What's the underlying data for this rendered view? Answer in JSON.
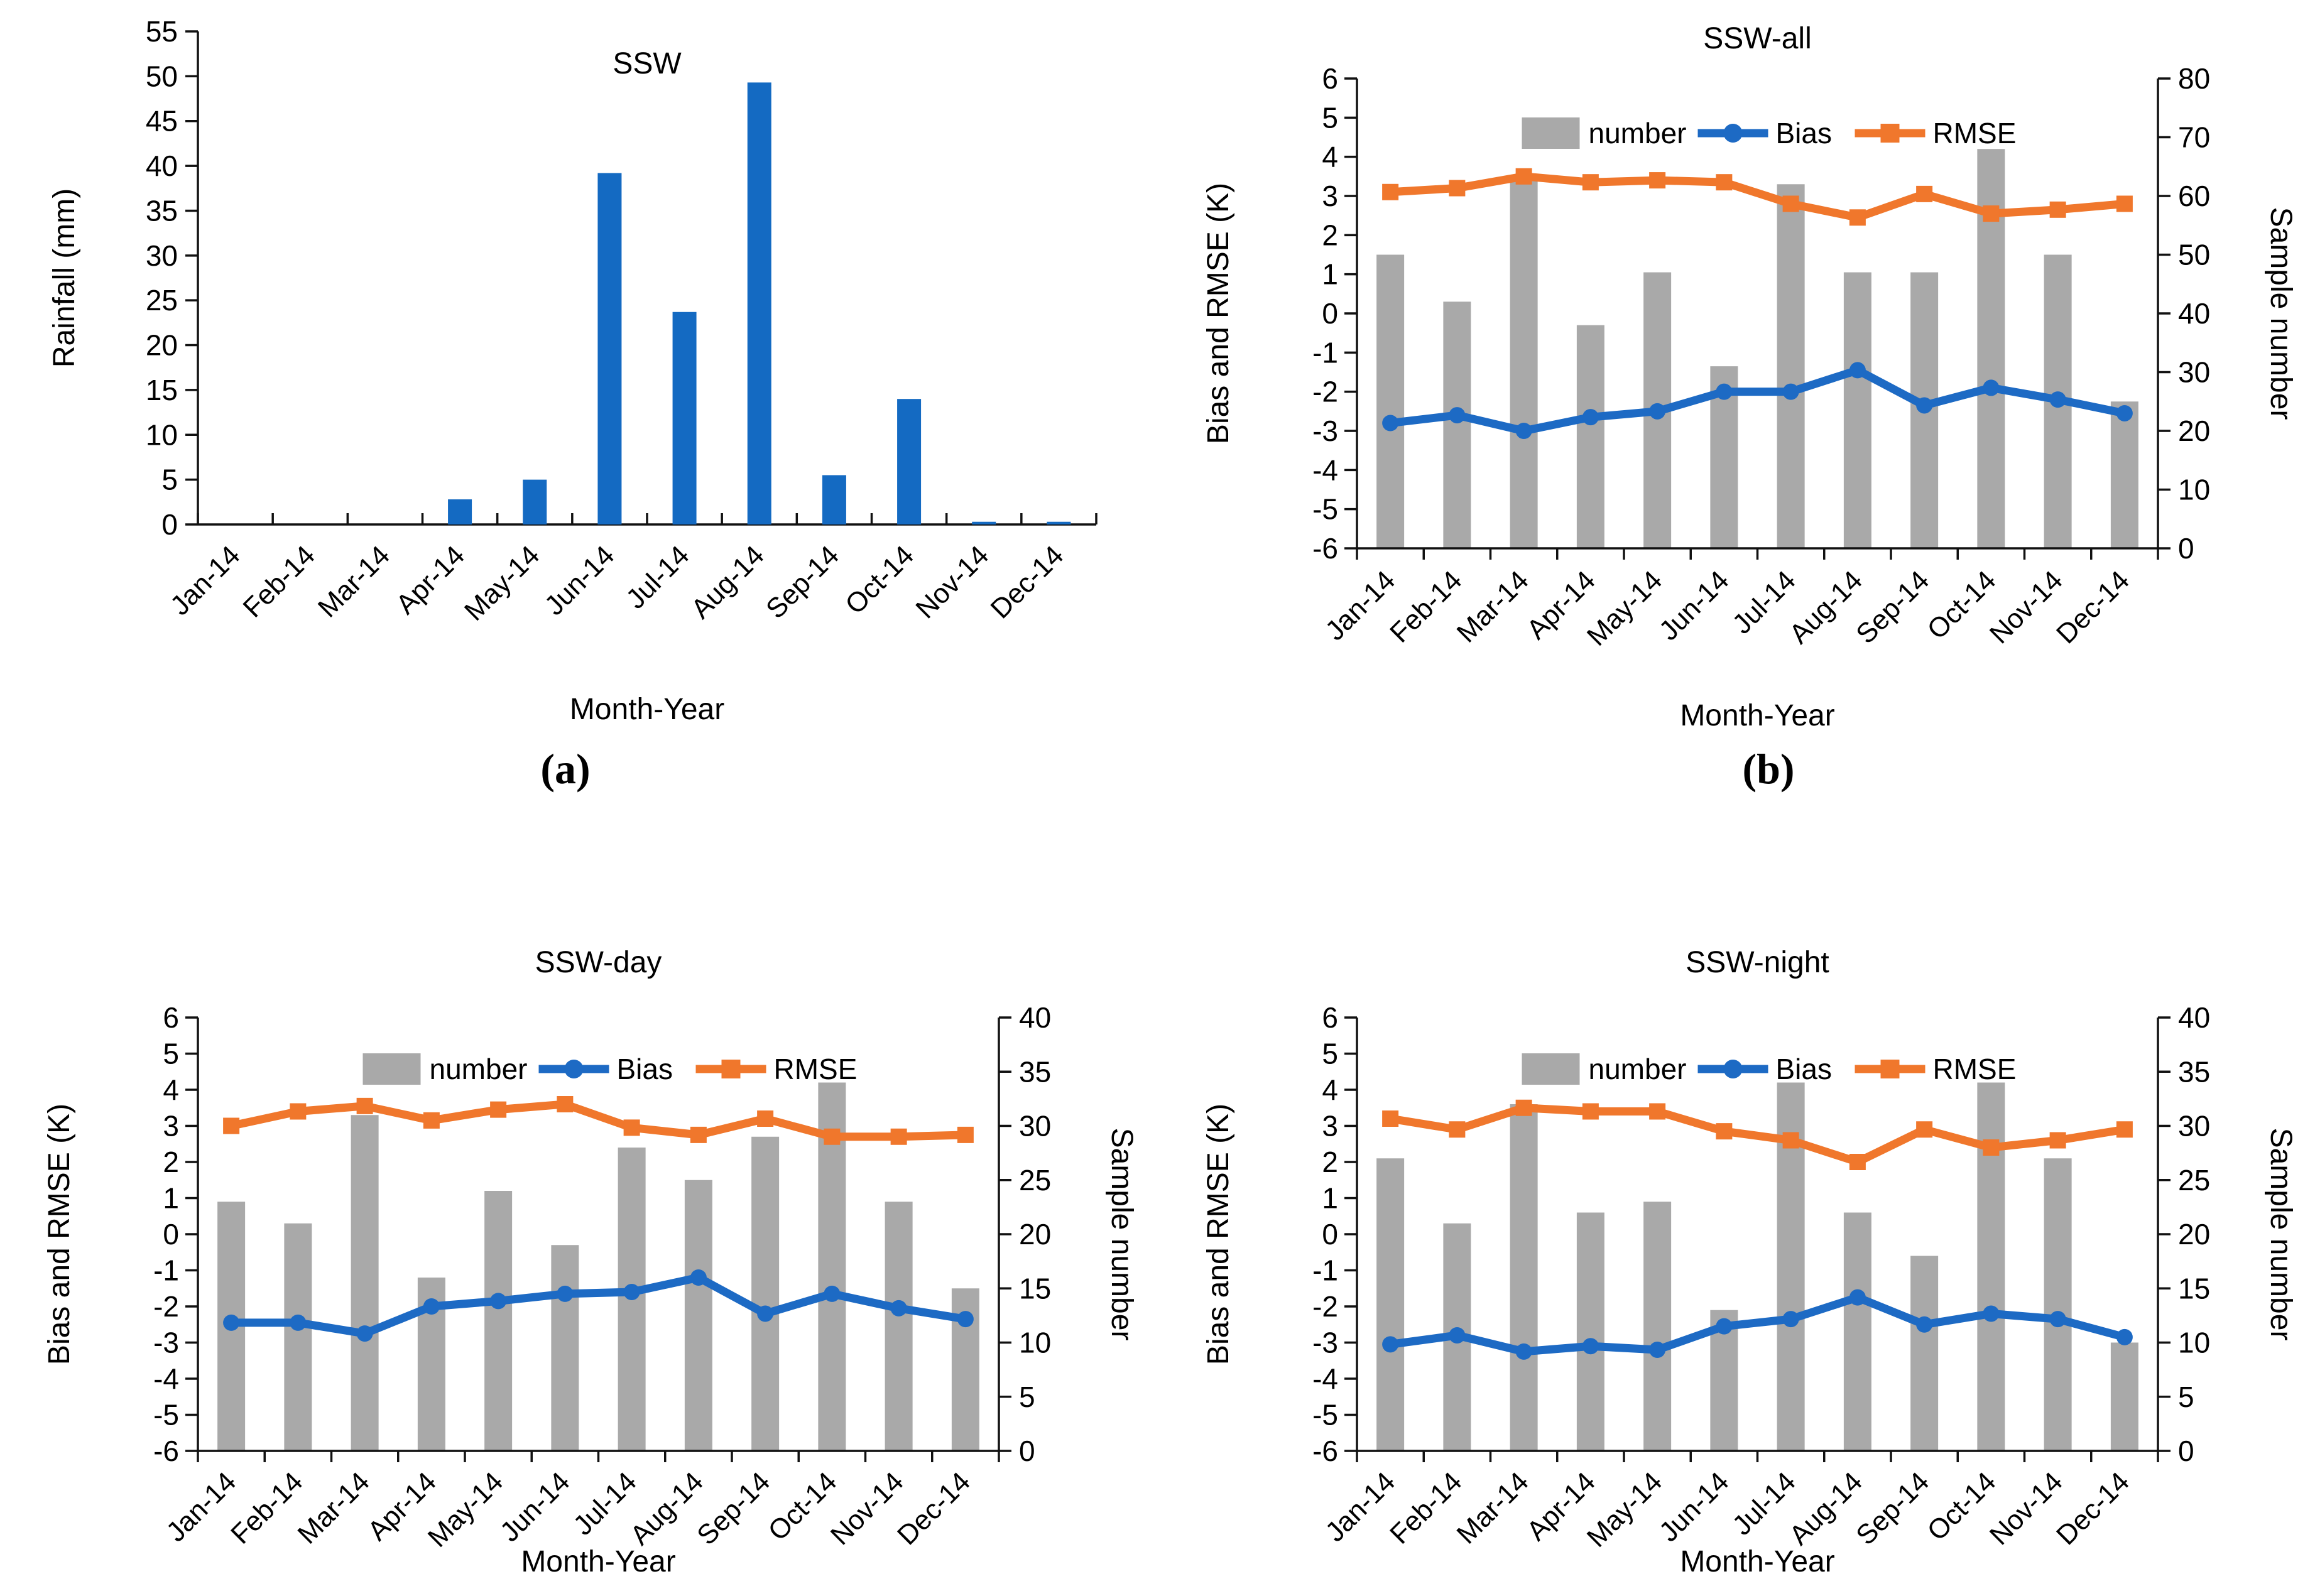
{
  "colors": {
    "rain_bar_blue": "#146ac2",
    "number_bar_gray": "#a9a9a9",
    "bias_line_blue": "#1d6ac4",
    "rmse_line_orange": "#f0772c",
    "axis_black": "#111111"
  },
  "labels": {
    "a": "(a)",
    "b": "(b)"
  },
  "chart_data": [
    {
      "id": "ssw-rainfall",
      "panel": "a",
      "type": "bar",
      "title": "SSW",
      "xlabel": "Month-Year",
      "ylabel": "Rainfall (mm)",
      "ylim": [
        0,
        55
      ],
      "yticks": [
        0,
        5,
        10,
        15,
        20,
        25,
        30,
        35,
        40,
        45,
        50,
        55
      ],
      "grid": false,
      "categories": [
        "Jan-14",
        "Feb-14",
        "Mar-14",
        "Apr-14",
        "May-14",
        "Jun-14",
        "Jul-14",
        "Aug-14",
        "Sep-14",
        "Oct-14",
        "Nov-14",
        "Dec-14"
      ],
      "values": [
        0,
        0,
        0,
        2.8,
        5.0,
        39.2,
        23.7,
        49.3,
        5.5,
        14.0,
        0.3,
        0.3
      ]
    },
    {
      "id": "ssw-all",
      "panel": "b",
      "type": "combo",
      "title": "SSW-all",
      "xlabel": "Month-Year",
      "left_ylabel": "Bias and RMSE (K)",
      "right_ylabel": "Sample number",
      "left_ylim": [
        -6,
        6
      ],
      "left_ticks": [
        -6,
        -5,
        -4,
        -3,
        -2,
        -1,
        0,
        1,
        2,
        3,
        4,
        5,
        6
      ],
      "right_ylim": [
        0,
        80
      ],
      "right_ticks": [
        0,
        10,
        20,
        30,
        40,
        50,
        60,
        70,
        80
      ],
      "legend_position": "top-center",
      "categories": [
        "Jan-14",
        "Feb-14",
        "Mar-14",
        "Apr-14",
        "May-14",
        "Jun-14",
        "Jul-14",
        "Aug-14",
        "Sep-14",
        "Oct-14",
        "Nov-14",
        "Dec-14"
      ],
      "series": [
        {
          "name": "number",
          "type": "bar",
          "axis": "right",
          "values": [
            50,
            42,
            63,
            38,
            47,
            31,
            62,
            47,
            47,
            68,
            50,
            25
          ]
        },
        {
          "name": "Bias",
          "type": "line",
          "marker": "circle",
          "axis": "left",
          "values": [
            -2.8,
            -2.6,
            -3.0,
            -2.65,
            -2.5,
            -2.0,
            -2.0,
            -1.45,
            -2.35,
            -1.9,
            -2.2,
            -2.55
          ]
        },
        {
          "name": "RMSE",
          "type": "line",
          "marker": "square",
          "axis": "left",
          "values": [
            3.1,
            3.2,
            3.5,
            3.35,
            3.4,
            3.35,
            2.8,
            2.45,
            3.05,
            2.55,
            2.65,
            2.8
          ]
        }
      ]
    },
    {
      "id": "ssw-day",
      "panel": "c",
      "type": "combo",
      "title": "SSW-day",
      "xlabel": "Month-Year",
      "left_ylabel": "Bias and RMSE (K)",
      "right_ylabel": "Sample number",
      "left_ylim": [
        -6,
        6
      ],
      "left_ticks": [
        -6,
        -5,
        -4,
        -3,
        -2,
        -1,
        0,
        1,
        2,
        3,
        4,
        5,
        6
      ],
      "right_ylim": [
        0,
        40
      ],
      "right_ticks": [
        0,
        5,
        10,
        15,
        20,
        25,
        30,
        35,
        40
      ],
      "legend_position": "top-center",
      "categories": [
        "Jan-14",
        "Feb-14",
        "Mar-14",
        "Apr-14",
        "May-14",
        "Jun-14",
        "Jul-14",
        "Aug-14",
        "Sep-14",
        "Oct-14",
        "Nov-14",
        "Dec-14"
      ],
      "series": [
        {
          "name": "number",
          "type": "bar",
          "axis": "right",
          "values": [
            23,
            21,
            31,
            16,
            24,
            19,
            28,
            25,
            29,
            34,
            23,
            15
          ]
        },
        {
          "name": "Bias",
          "type": "line",
          "marker": "circle",
          "axis": "left",
          "values": [
            -2.45,
            -2.45,
            -2.75,
            -2.0,
            -1.85,
            -1.65,
            -1.6,
            -1.2,
            -2.2,
            -1.65,
            -2.05,
            -2.35
          ]
        },
        {
          "name": "RMSE",
          "type": "line",
          "marker": "square",
          "axis": "left",
          "values": [
            3.0,
            3.4,
            3.55,
            3.15,
            3.45,
            3.6,
            2.95,
            2.75,
            3.2,
            2.7,
            2.7,
            2.75
          ]
        }
      ]
    },
    {
      "id": "ssw-night",
      "panel": "d",
      "type": "combo",
      "title": "SSW-night",
      "xlabel": "Month-Year",
      "left_ylabel": "Bias and RMSE (K)",
      "right_ylabel": "Sample number",
      "left_ylim": [
        -6,
        6
      ],
      "left_ticks": [
        -6,
        -5,
        -4,
        -3,
        -2,
        -1,
        0,
        1,
        2,
        3,
        4,
        5,
        6
      ],
      "right_ylim": [
        0,
        40
      ],
      "right_ticks": [
        0,
        5,
        10,
        15,
        20,
        25,
        30,
        35,
        40
      ],
      "legend_position": "top-center",
      "categories": [
        "Jan-14",
        "Feb-14",
        "Mar-14",
        "Apr-14",
        "May-14",
        "Jun-14",
        "Jul-14",
        "Aug-14",
        "Sep-14",
        "Oct-14",
        "Nov-14",
        "Dec-14"
      ],
      "series": [
        {
          "name": "number",
          "type": "bar",
          "axis": "right",
          "values": [
            27,
            21,
            32,
            22,
            23,
            13,
            34,
            22,
            18,
            34,
            27,
            10
          ]
        },
        {
          "name": "Bias",
          "type": "line",
          "marker": "circle",
          "axis": "left",
          "values": [
            -3.05,
            -2.8,
            -3.25,
            -3.1,
            -3.2,
            -2.55,
            -2.35,
            -1.75,
            -2.5,
            -2.2,
            -2.35,
            -2.85
          ]
        },
        {
          "name": "RMSE",
          "type": "line",
          "marker": "square",
          "axis": "left",
          "values": [
            3.2,
            2.9,
            3.5,
            3.4,
            3.4,
            2.85,
            2.6,
            2.0,
            2.9,
            2.4,
            2.6,
            2.9
          ]
        }
      ]
    }
  ]
}
